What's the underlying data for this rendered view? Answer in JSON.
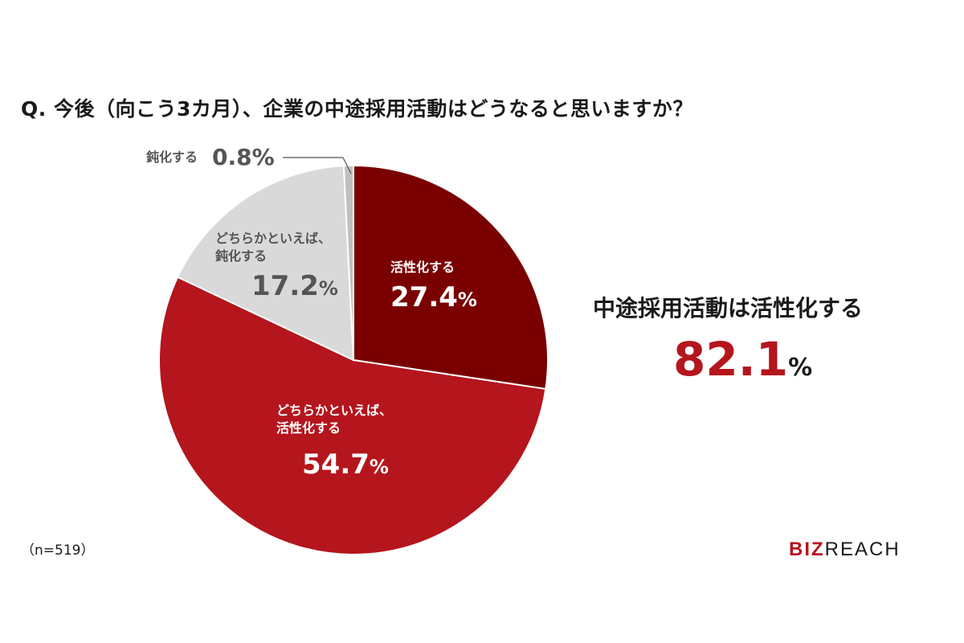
{
  "question": "Q. 今後（向こう3カ月）、企業の中途採用活動はどうなると思いますか？",
  "chart_data": {
    "type": "pie",
    "slices": [
      {
        "label": "活性化する",
        "value": 27.4,
        "color": "#7a0000"
      },
      {
        "label": "どちらかといえば、活性化する",
        "value": 54.7,
        "color": "#b5151d"
      },
      {
        "label": "どちらかといえば、鈍化する",
        "value": 17.2,
        "color": "#d9d9d9"
      },
      {
        "label": "鈍化する",
        "value": 0.8,
        "color": "#bfbfbf"
      }
    ]
  },
  "labels": {
    "active": {
      "line1": "活性化する",
      "value": "27.4",
      "unit": "%"
    },
    "some_active": {
      "line1": "どちらかといえば、",
      "line2": "活性化する",
      "value": "54.7",
      "unit": "%"
    },
    "some_dull": {
      "line1": "どちらかといえば、",
      "line2": "鈍化する",
      "value": "17.2",
      "unit": "%"
    },
    "dull": {
      "line1": "鈍化する",
      "value": "0.8%"
    }
  },
  "summary": {
    "title": "中途採用活動は活性化する",
    "value": "82.1",
    "unit": "%"
  },
  "sample": "（n=519）",
  "logo": {
    "biz": "BIZ",
    "reach": "REACH"
  }
}
